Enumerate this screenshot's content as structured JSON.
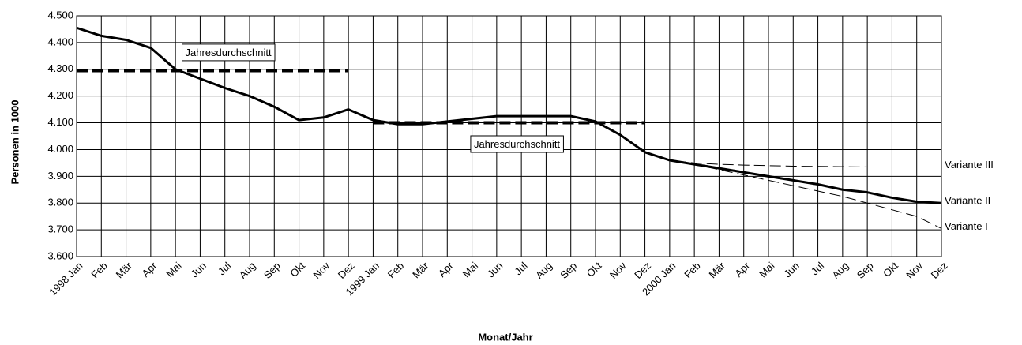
{
  "chart_data": {
    "type": "line",
    "x_label": "Monat/Jahr",
    "y_label": "Personen in 1000",
    "categories": [
      "1998 Jan",
      "Feb",
      "Mär",
      "Apr",
      "Mai",
      "Jun",
      "Jul",
      "Aug",
      "Sep",
      "Okt",
      "Nov",
      "Dez",
      "1999 Jan",
      "Feb",
      "Mär",
      "Apr",
      "Mai",
      "Jun",
      "Jul",
      "Aug",
      "Sep",
      "Okt",
      "Nov",
      "Dez",
      "2000 Jan",
      "Feb",
      "Mär",
      "Apr",
      "Mai",
      "Jun",
      "Jul",
      "Aug",
      "Sep",
      "Okt",
      "Nov",
      "Dez"
    ],
    "ylim": [
      3600,
      4500
    ],
    "yticks": [
      {
        "value": 3600,
        "label": "3.600"
      },
      {
        "value": 3700,
        "label": "3.700"
      },
      {
        "value": 3800,
        "label": "3.800"
      },
      {
        "value": 3900,
        "label": "3.900"
      },
      {
        "value": 4000,
        "label": "4.000"
      },
      {
        "value": 4100,
        "label": "4.100"
      },
      {
        "value": 4200,
        "label": "4.200"
      },
      {
        "value": 4300,
        "label": "4.300"
      },
      {
        "value": 4400,
        "label": "4.400"
      },
      {
        "value": 4500,
        "label": "4.500"
      }
    ],
    "grid": true,
    "series": [
      {
        "color": "#000000",
        "line_style": "solid-bold",
        "values": [
          4455,
          4425,
          4410,
          4380,
          4300,
          4265,
          4230,
          4200,
          4160,
          4110,
          4120,
          4150,
          4110,
          4095,
          4095,
          4105,
          4115,
          4125,
          4125,
          4125,
          4125,
          4105,
          4055,
          3990,
          null,
          null,
          null,
          null,
          null,
          null,
          null,
          null,
          null,
          null,
          null,
          null
        ]
      },
      {
        "name": "Jahresdurchschnitt",
        "color": "#000000",
        "line_style": "dashed-bold",
        "values": [
          4295,
          4295,
          4295,
          4295,
          4295,
          4295,
          4295,
          4295,
          4295,
          4295,
          4295,
          4295,
          null,
          null,
          null,
          null,
          null,
          null,
          null,
          null,
          null,
          null,
          null,
          null,
          null,
          null,
          null,
          null,
          null,
          null,
          null,
          null,
          null,
          null,
          null,
          null
        ]
      },
      {
        "name": "Jahresdurchschnitt",
        "color": "#000000",
        "line_style": "dashed-bold",
        "values": [
          null,
          null,
          null,
          null,
          null,
          null,
          null,
          null,
          null,
          null,
          null,
          null,
          4100,
          4100,
          4100,
          4100,
          4100,
          4100,
          4100,
          4100,
          4100,
          4100,
          4100,
          4100,
          null,
          null,
          null,
          null,
          null,
          null,
          null,
          null,
          null,
          null,
          null,
          null
        ]
      },
      {
        "name": "Variante III",
        "color": "#000000",
        "line_style": "dashed",
        "values": [
          null,
          null,
          null,
          null,
          null,
          null,
          null,
          null,
          null,
          null,
          null,
          null,
          null,
          null,
          null,
          null,
          null,
          null,
          null,
          null,
          null,
          null,
          null,
          3990,
          3960,
          3950,
          3945,
          3942,
          3940,
          3938,
          3937,
          3936,
          3935,
          3935,
          3935,
          3935
        ]
      },
      {
        "name": "Variante II",
        "color": "#000000",
        "line_style": "solid-bold",
        "values": [
          null,
          null,
          null,
          null,
          null,
          null,
          null,
          null,
          null,
          null,
          null,
          null,
          null,
          null,
          null,
          null,
          null,
          null,
          null,
          null,
          null,
          null,
          null,
          3990,
          3960,
          3945,
          3930,
          3915,
          3900,
          3885,
          3870,
          3850,
          3840,
          3820,
          3805,
          3800
        ]
      },
      {
        "name": "Variante I",
        "color": "#000000",
        "line_style": "dashed",
        "values": [
          null,
          null,
          null,
          null,
          null,
          null,
          null,
          null,
          null,
          null,
          null,
          null,
          null,
          null,
          null,
          null,
          null,
          null,
          null,
          null,
          null,
          null,
          null,
          3990,
          3960,
          3945,
          3925,
          3905,
          3885,
          3865,
          3845,
          3825,
          3800,
          3775,
          3750,
          3705
        ]
      }
    ]
  }
}
